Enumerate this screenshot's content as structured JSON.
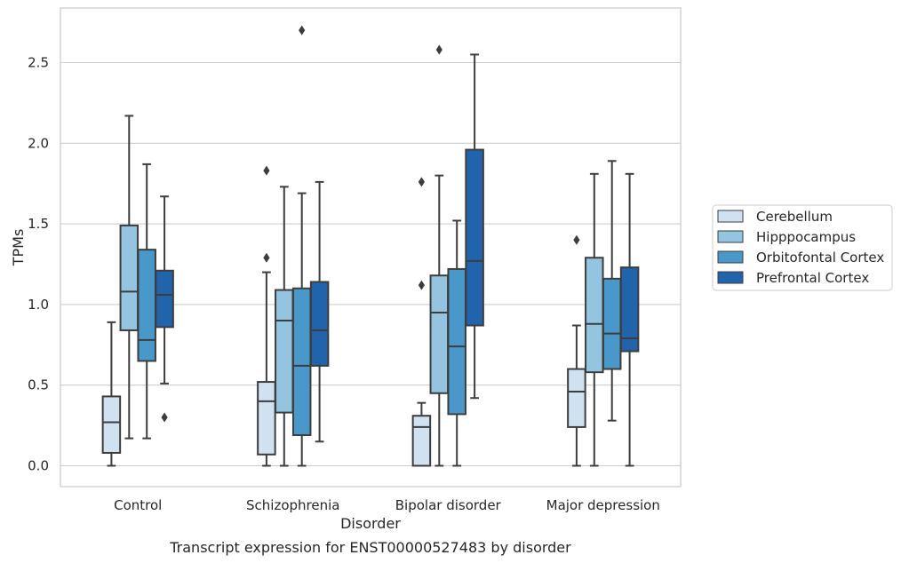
{
  "chart_data": {
    "type": "box",
    "xlabel": "Disorder",
    "ylabel": "TPMs",
    "caption": "Transcript expression for ENST00000527483 by disorder",
    "ylim": [
      -0.13,
      2.85
    ],
    "yticks": [
      0.0,
      0.5,
      1.0,
      1.5,
      2.0,
      2.5
    ],
    "ytick_labels": [
      "0.0",
      "0.5",
      "1.0",
      "1.5",
      "2.0",
      "2.5"
    ],
    "grid": true,
    "legend_position": "right",
    "categories": [
      "Control",
      "Schizophrenia",
      "Bipolar disorder",
      "Major depression"
    ],
    "series": [
      {
        "name": "Cerebellum",
        "color": "#d0e1f2",
        "boxes": [
          {
            "whisker_low": 0.0,
            "q1": 0.08,
            "median": 0.27,
            "q3": 0.43,
            "whisker_high": 0.89,
            "outliers": []
          },
          {
            "whisker_low": 0.0,
            "q1": 0.07,
            "median": 0.4,
            "q3": 0.52,
            "whisker_high": 1.2,
            "outliers": [
              1.29,
              1.83
            ]
          },
          {
            "whisker_low": 0.0,
            "q1": 0.0,
            "median": 0.24,
            "q3": 0.31,
            "whisker_high": 0.39,
            "outliers": [
              1.12,
              1.76
            ]
          },
          {
            "whisker_low": 0.0,
            "q1": 0.24,
            "median": 0.46,
            "q3": 0.6,
            "whisker_high": 0.87,
            "outliers": [
              1.4
            ]
          }
        ]
      },
      {
        "name": "Hipppocampus",
        "color": "#94c4df",
        "boxes": [
          {
            "whisker_low": 0.17,
            "q1": 0.84,
            "median": 1.08,
            "q3": 1.49,
            "whisker_high": 2.17,
            "outliers": []
          },
          {
            "whisker_low": 0.0,
            "q1": 0.33,
            "median": 0.9,
            "q3": 1.09,
            "whisker_high": 1.73,
            "outliers": []
          },
          {
            "whisker_low": 0.0,
            "q1": 0.45,
            "median": 0.95,
            "q3": 1.18,
            "whisker_high": 1.8,
            "outliers": [
              2.58
            ]
          },
          {
            "whisker_low": 0.0,
            "q1": 0.58,
            "median": 0.88,
            "q3": 1.29,
            "whisker_high": 1.81,
            "outliers": []
          }
        ]
      },
      {
        "name": "Orbitofontal Cortex",
        "color": "#4a98c9",
        "boxes": [
          {
            "whisker_low": 0.17,
            "q1": 0.65,
            "median": 0.78,
            "q3": 1.34,
            "whisker_high": 1.87,
            "outliers": []
          },
          {
            "whisker_low": 0.0,
            "q1": 0.19,
            "median": 0.62,
            "q3": 1.1,
            "whisker_high": 1.69,
            "outliers": [
              2.7
            ]
          },
          {
            "whisker_low": 0.0,
            "q1": 0.32,
            "median": 0.74,
            "q3": 1.22,
            "whisker_high": 1.52,
            "outliers": []
          },
          {
            "whisker_low": 0.28,
            "q1": 0.6,
            "median": 0.82,
            "q3": 1.16,
            "whisker_high": 1.89,
            "outliers": []
          }
        ]
      },
      {
        "name": "Prefrontal Cortex",
        "color": "#2164ab",
        "boxes": [
          {
            "whisker_low": 0.51,
            "q1": 0.86,
            "median": 1.06,
            "q3": 1.21,
            "whisker_high": 1.67,
            "outliers": [
              0.3
            ]
          },
          {
            "whisker_low": 0.15,
            "q1": 0.62,
            "median": 0.84,
            "q3": 1.14,
            "whisker_high": 1.76,
            "outliers": []
          },
          {
            "whisker_low": 0.42,
            "q1": 0.87,
            "median": 1.27,
            "q3": 1.96,
            "whisker_high": 2.55,
            "outliers": []
          },
          {
            "whisker_low": 0.0,
            "q1": 0.71,
            "median": 0.79,
            "q3": 1.23,
            "whisker_high": 1.81,
            "outliers": []
          }
        ]
      }
    ],
    "line_color": "#3d3d3d",
    "grid_color": "#cccccc",
    "frame_color": "#cccccc"
  }
}
